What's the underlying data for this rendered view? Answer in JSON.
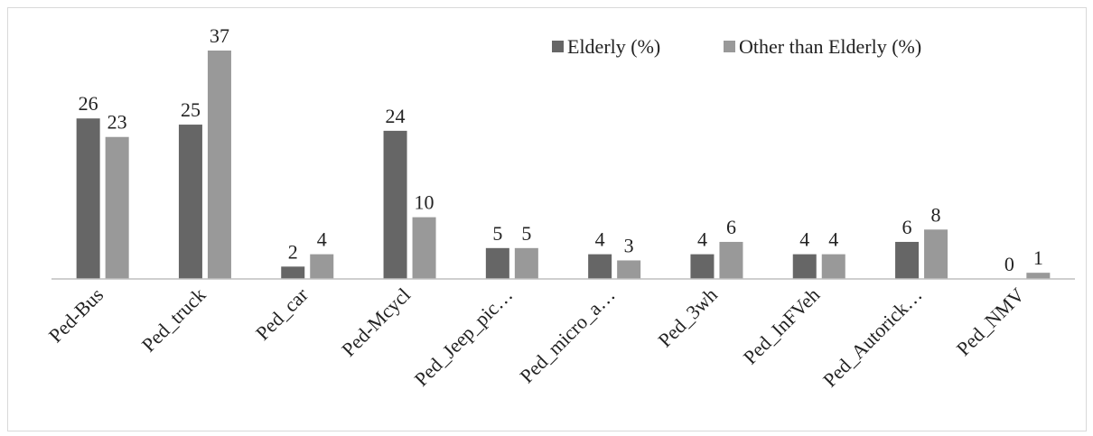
{
  "chart_data": {
    "type": "bar",
    "categories": [
      "Ped-Bus",
      "Ped_truck",
      "Ped_car",
      "Ped-Mcycl",
      "Ped_Jeep_pic…",
      "Ped_micro_a…",
      "Ped_3wh",
      "Ped_InFVeh",
      "Ped_Autorick…",
      "Ped_NMV"
    ],
    "series": [
      {
        "name": "Elderly (%)",
        "values": [
          26,
          25,
          2,
          24,
          5,
          4,
          4,
          4,
          6,
          0
        ],
        "color": "#666666"
      },
      {
        "name": "Other than Elderly (%)",
        "values": [
          23,
          37,
          4,
          10,
          5,
          3,
          6,
          4,
          8,
          1
        ],
        "color": "#999999"
      }
    ],
    "title": "",
    "xlabel": "",
    "ylabel": "",
    "ylim": [
      0,
      40
    ],
    "grid": false,
    "legend_position": "top-right",
    "data_labels": true
  }
}
